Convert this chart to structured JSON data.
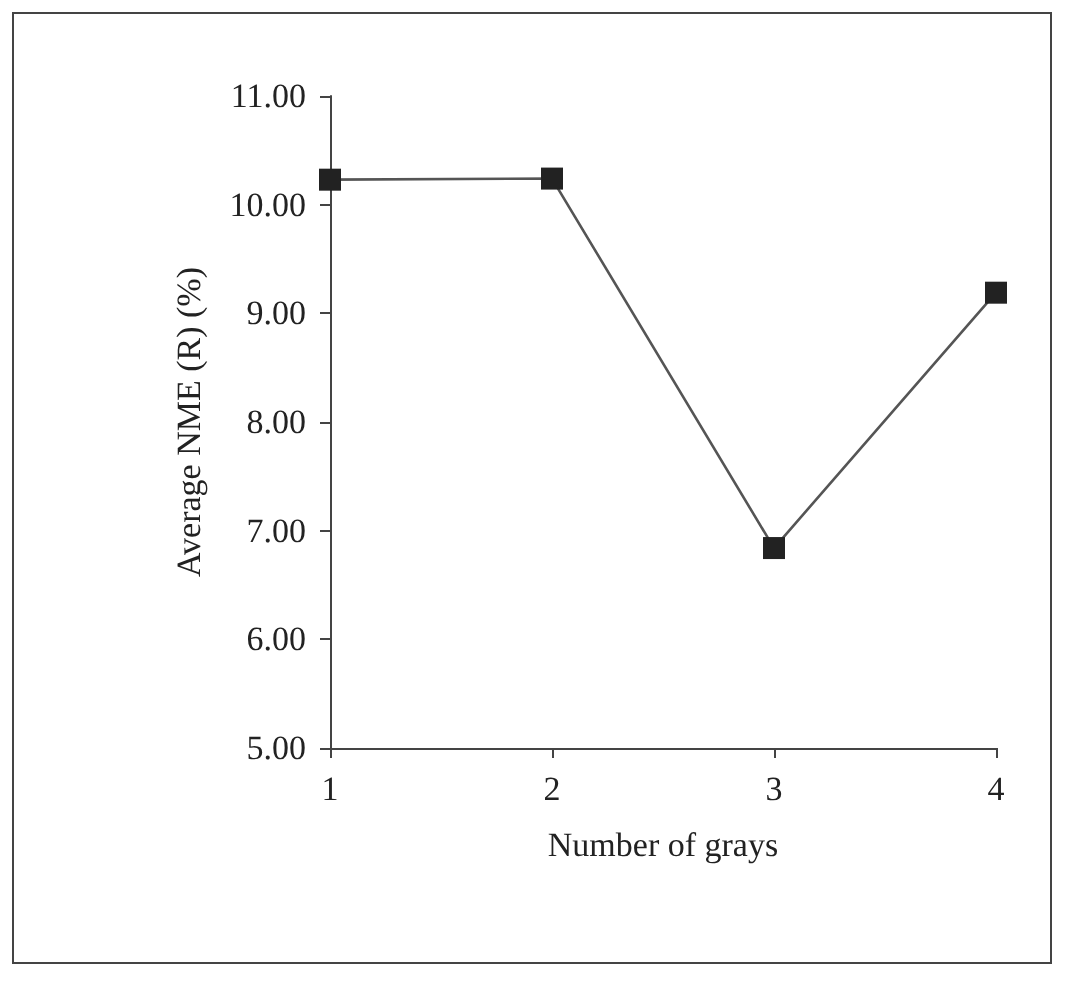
{
  "chart_data": {
    "type": "line",
    "xlabel": "Number of grays",
    "ylabel": "Average NME (R) (%)",
    "x": [
      1,
      2,
      3,
      4
    ],
    "series": [
      {
        "color": "#555555",
        "values": [
          10.23,
          10.24,
          6.84,
          9.19
        ]
      }
    ],
    "xlim": [
      1,
      4
    ],
    "xticks": [
      1,
      2,
      3,
      4
    ],
    "ylim": [
      5,
      11
    ],
    "yticks": [
      {
        "value": 5,
        "label": "5.00"
      },
      {
        "value": 6,
        "label": "6.00"
      },
      {
        "value": 7,
        "label": "7.00"
      },
      {
        "value": 8,
        "label": "8.00"
      },
      {
        "value": 9,
        "label": "9.00"
      },
      {
        "value": 10,
        "label": "10.00"
      },
      {
        "value": 11,
        "label": "11.00"
      }
    ],
    "marker": "square",
    "line_style": "solid"
  }
}
